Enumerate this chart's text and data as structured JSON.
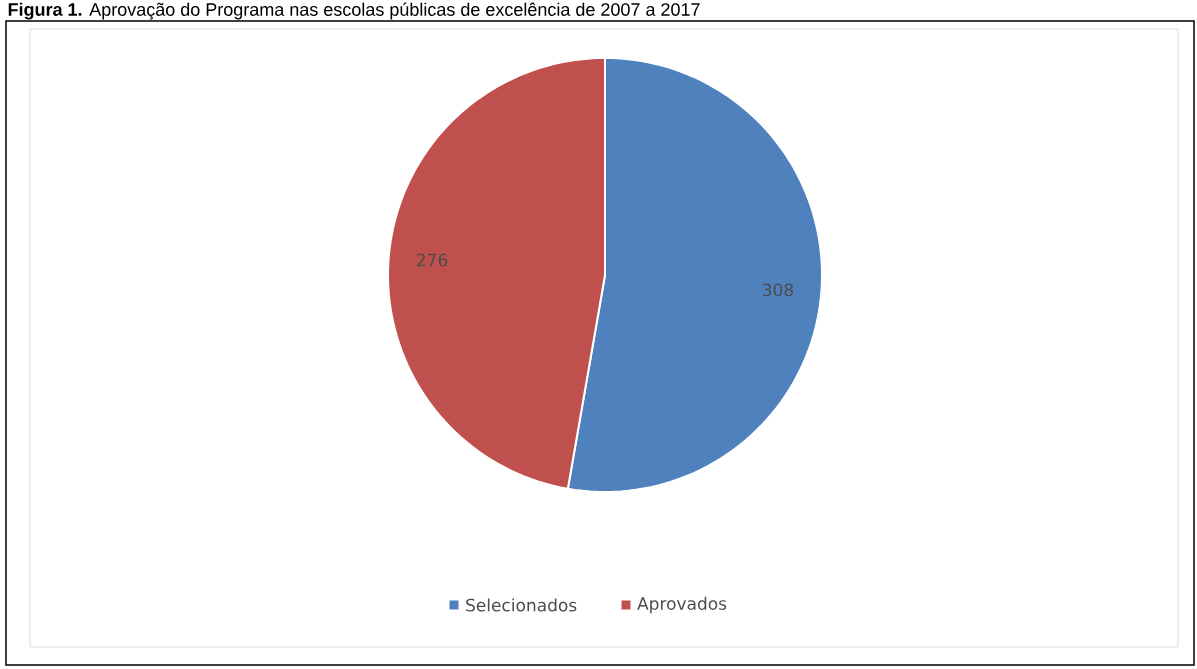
{
  "chart_data": {
    "type": "pie",
    "title": "**Figura 1.** Aprovação do Programa nas escolas públicas de excelência de 2007 a 2017",
    "categories": [
      "Selecionados",
      "Aprovados"
    ],
    "values": [
      308,
      276
    ],
    "colors": [
      "#4f81bd",
      "#c0504d"
    ],
    "data_labels": true,
    "legend": "bottom"
  }
}
